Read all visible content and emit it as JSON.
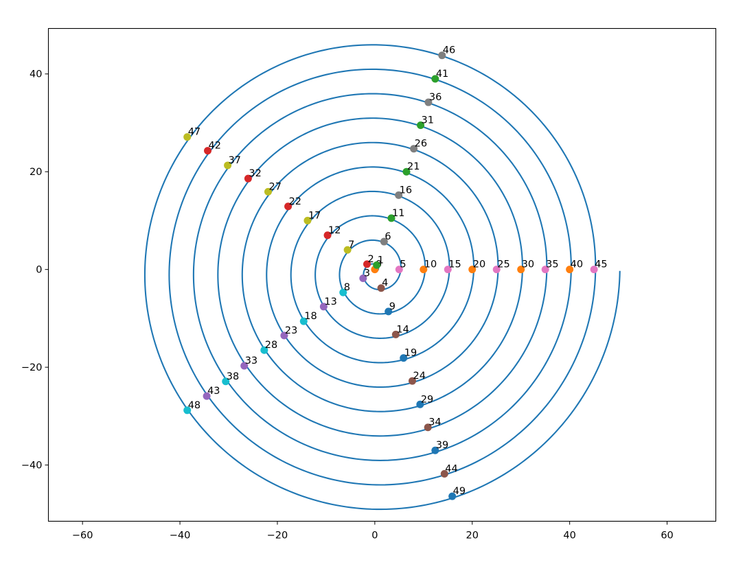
{
  "chart_data": {
    "type": "scatter",
    "title": "",
    "xlabel": "",
    "ylabel": "",
    "xlim": [
      -67,
      70
    ],
    "ylim": [
      -51.5,
      49.3
    ],
    "grid": false,
    "legend": "none",
    "xticks": [
      -60,
      -40,
      -20,
      0,
      20,
      40,
      60
    ],
    "yticks": [
      -40,
      -20,
      0,
      20,
      40
    ],
    "xtick_labels": [
      "−60",
      "−40",
      "−20",
      "0",
      "20",
      "40",
      "60"
    ],
    "ytick_labels": [
      "−40",
      "−20",
      "0",
      "20",
      "40"
    ],
    "spiral": {
      "name": "spiral",
      "color": "#1f77b4",
      "r_per_radian": 0.7958,
      "phase_radians": 2.47,
      "t_max_radians": 62.832,
      "center": [
        0.3,
        -0.3
      ]
    },
    "marker_colors": [
      "#ff7f0e",
      "#2ca02c",
      "#d62728",
      "#9467bd",
      "#8c564b",
      "#e377c2",
      "#7f7f7f",
      "#bcbd22",
      "#17becf",
      "#1f77b4"
    ],
    "points": [
      {
        "label": "0",
        "x": 0.0,
        "y": 0.0
      },
      {
        "label": "1",
        "x": 0.4,
        "y": 0.9
      },
      {
        "label": "2",
        "x": -1.6,
        "y": 1.1
      },
      {
        "label": "3",
        "x": -2.4,
        "y": -1.8
      },
      {
        "label": "4",
        "x": 1.3,
        "y": -3.8
      },
      {
        "label": "5",
        "x": 5.0,
        "y": 0.0
      },
      {
        "label": "6",
        "x": 1.9,
        "y": 5.7
      },
      {
        "label": "7",
        "x": -5.6,
        "y": 4.0
      },
      {
        "label": "8",
        "x": -6.5,
        "y": -4.7
      },
      {
        "label": "9",
        "x": 2.8,
        "y": -8.6
      },
      {
        "label": "10",
        "x": 10.0,
        "y": 0.0
      },
      {
        "label": "11",
        "x": 3.4,
        "y": 10.5
      },
      {
        "label": "12",
        "x": -9.7,
        "y": 7.0
      },
      {
        "label": "13",
        "x": -10.5,
        "y": -7.6
      },
      {
        "label": "14",
        "x": 4.3,
        "y": -13.3
      },
      {
        "label": "15",
        "x": 15.0,
        "y": 0.0
      },
      {
        "label": "16",
        "x": 4.9,
        "y": 15.2
      },
      {
        "label": "17",
        "x": -13.8,
        "y": 10.0
      },
      {
        "label": "18",
        "x": -14.6,
        "y": -10.6
      },
      {
        "label": "19",
        "x": 5.9,
        "y": -18.1
      },
      {
        "label": "20",
        "x": 20.0,
        "y": 0.0
      },
      {
        "label": "21",
        "x": 6.5,
        "y": 20.0
      },
      {
        "label": "22",
        "x": -17.8,
        "y": 12.9
      },
      {
        "label": "23",
        "x": -18.6,
        "y": -13.5
      },
      {
        "label": "24",
        "x": 7.7,
        "y": -22.8
      },
      {
        "label": "25",
        "x": 25.0,
        "y": 0.0
      },
      {
        "label": "26",
        "x": 8.0,
        "y": 24.7
      },
      {
        "label": "27",
        "x": -21.9,
        "y": 15.9
      },
      {
        "label": "28",
        "x": -22.7,
        "y": -16.5
      },
      {
        "label": "29",
        "x": 9.3,
        "y": -27.6
      },
      {
        "label": "30",
        "x": 30.0,
        "y": 0.0
      },
      {
        "label": "31",
        "x": 9.4,
        "y": 29.5
      },
      {
        "label": "32",
        "x": -26.0,
        "y": 18.6
      },
      {
        "label": "33",
        "x": -26.8,
        "y": -19.7
      },
      {
        "label": "34",
        "x": 10.9,
        "y": -32.3
      },
      {
        "label": "35",
        "x": 35.0,
        "y": 0.0
      },
      {
        "label": "36",
        "x": 11.0,
        "y": 34.2
      },
      {
        "label": "37",
        "x": -30.2,
        "y": 21.3
      },
      {
        "label": "38",
        "x": -30.6,
        "y": -22.9
      },
      {
        "label": "39",
        "x": 12.4,
        "y": -37.0
      },
      {
        "label": "40",
        "x": 40.0,
        "y": 0.0
      },
      {
        "label": "41",
        "x": 12.4,
        "y": 39.0
      },
      {
        "label": "42",
        "x": -34.3,
        "y": 24.3
      },
      {
        "label": "43",
        "x": -34.5,
        "y": -25.9
      },
      {
        "label": "44",
        "x": 14.3,
        "y": -41.8
      },
      {
        "label": "45",
        "x": 45.0,
        "y": 0.0
      },
      {
        "label": "46",
        "x": 13.8,
        "y": 43.8
      },
      {
        "label": "47",
        "x": -38.5,
        "y": 27.1
      },
      {
        "label": "48",
        "x": -38.5,
        "y": -28.8
      },
      {
        "label": "49",
        "x": 15.9,
        "y": -46.4
      }
    ]
  }
}
